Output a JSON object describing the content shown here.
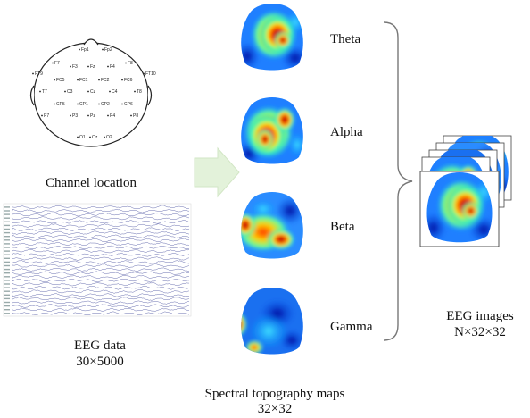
{
  "labels": {
    "channel_location": "Channel location",
    "eeg_data": "EEG data",
    "eeg_data_dims": "30×5000",
    "spectral_maps": "Spectral topography maps",
    "spectral_dims": "32×32",
    "eeg_images": "EEG images",
    "eeg_images_dims": "N×32×32"
  },
  "bands": [
    "Theta",
    "Alpha",
    "Beta",
    "Gamma"
  ],
  "electrodes": [
    "Fp1",
    "Fp2",
    "F7",
    "F3",
    "Fz",
    "F4",
    "F8",
    "FT9",
    "FT10",
    "FC5",
    "FC1",
    "FC2",
    "FC6",
    "T7",
    "C3",
    "Cz",
    "C4",
    "T8",
    "CP5",
    "CP1",
    "CP2",
    "CP6",
    "P7",
    "P3",
    "Pz",
    "P4",
    "P8",
    "O1",
    "Oz",
    "O2"
  ],
  "colors": {
    "arrow": "#e3f2da",
    "arrow_stroke": "#d2e6c5",
    "eeg_trace": "#6a70b0",
    "brace": "#777777"
  }
}
